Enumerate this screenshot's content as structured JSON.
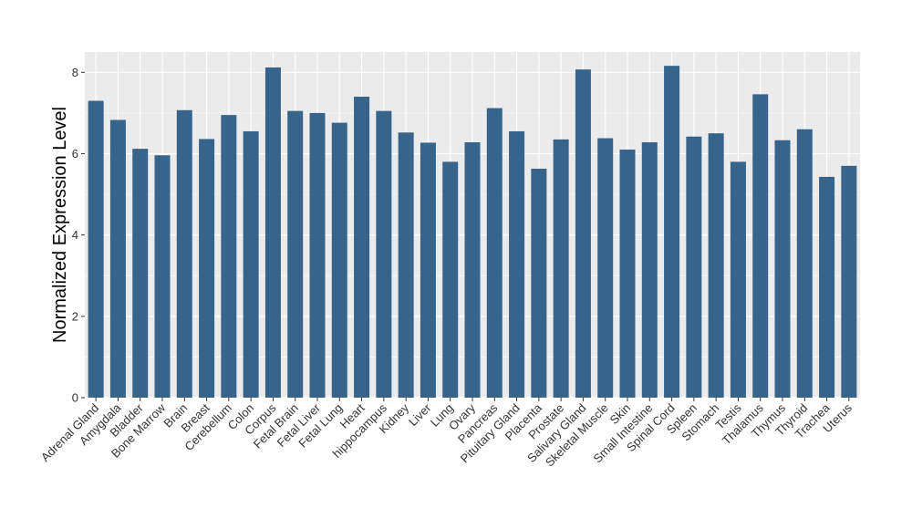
{
  "chart_data": {
    "type": "bar",
    "title": "",
    "xlabel": "",
    "ylabel": "Normalized Expression Level",
    "ylim": [
      0,
      8.5
    ],
    "yticks": [
      0,
      2,
      4,
      6,
      8
    ],
    "grid": true,
    "panel_background": "#ebebeb",
    "gridline_color": "#ffffff",
    "bar_color": "#36648b",
    "categories": [
      "Adrenal Gland",
      "Amygdala",
      "Bladder",
      "Bone Marrow",
      "Brain",
      "Breast",
      "Cerebellum",
      "Colon",
      "Corpus",
      "Fetal Brain",
      "Fetal Liver",
      "Fetal Lung",
      "Heart",
      "hippocampus",
      "Kidney",
      "Liver",
      "Lung",
      "Ovary",
      "Pancreas",
      "Pituitary Gland",
      "Placenta",
      "Prostate",
      "Salivary Gland",
      "Skeletal Muscle",
      "Skin",
      "Small Intestine",
      "Spinal Cord",
      "Spleen",
      "Stomach",
      "Testis",
      "Thalamus",
      "Thymus",
      "Thyroid",
      "Trachea",
      "Uterus"
    ],
    "values": [
      7.3,
      6.83,
      6.12,
      5.96,
      7.07,
      6.36,
      6.95,
      6.55,
      8.12,
      7.05,
      7.0,
      6.76,
      7.4,
      7.05,
      6.52,
      6.27,
      5.8,
      6.28,
      7.12,
      6.55,
      5.63,
      6.35,
      8.07,
      6.38,
      6.1,
      6.28,
      8.16,
      6.42,
      6.5,
      5.8,
      7.46,
      6.33,
      6.6,
      5.43,
      5.7
    ]
  }
}
